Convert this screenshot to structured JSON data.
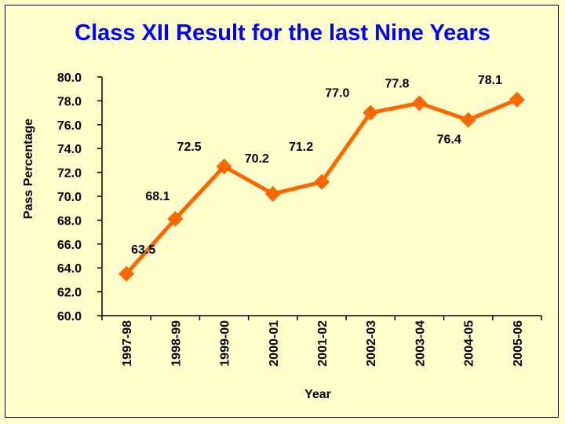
{
  "chart_data": {
    "type": "line",
    "title": "Class XII Result for the last Nine Years",
    "xlabel": "Year",
    "ylabel": "Pass Percentage",
    "categories": [
      "1997-98",
      "1998-99",
      "1999-00",
      "2000-01",
      "2001-02",
      "2002-03",
      "2003-04",
      "2004-05",
      "2005-06"
    ],
    "series": [
      {
        "values": [
          63.5,
          68.1,
          72.5,
          70.2,
          71.2,
          77.0,
          77.8,
          76.4,
          78.1
        ],
        "labels": [
          "63.5",
          "68.1",
          "72.5",
          "70.2",
          "71.2",
          "77.0",
          "77.8",
          "76.4",
          "78.1"
        ]
      }
    ],
    "ylim": [
      60.0,
      80.0
    ],
    "yticks": [
      "60.0",
      "62.0",
      "64.0",
      "66.0",
      "68.0",
      "70.0",
      "72.0",
      "74.0",
      "76.0",
      "78.0",
      "80.0"
    ],
    "grid": false,
    "legend": "none",
    "colors": {
      "line": "#ff6600",
      "title": "#0000ff",
      "background": "#ffffcc"
    }
  }
}
